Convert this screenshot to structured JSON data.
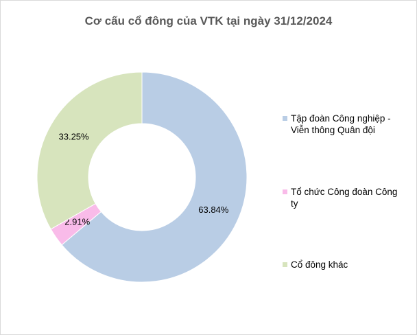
{
  "chart_data": {
    "type": "pie",
    "donut": true,
    "title": "Cơ cấu cổ đông của VTK tại ngày 31/12/2024",
    "categories": [
      "Tập đoàn Công nghiệp - Viễn thông Quân đội",
      "Tổ chức Công đoàn Công ty",
      "Cổ đông khác"
    ],
    "values": [
      63.84,
      2.91,
      33.25
    ],
    "value_labels": [
      "63.84%",
      "2.91%",
      "33.25%"
    ],
    "colors": [
      "#b9cde5",
      "#f9bbe9",
      "#d7e4bd"
    ],
    "legend": "right"
  }
}
